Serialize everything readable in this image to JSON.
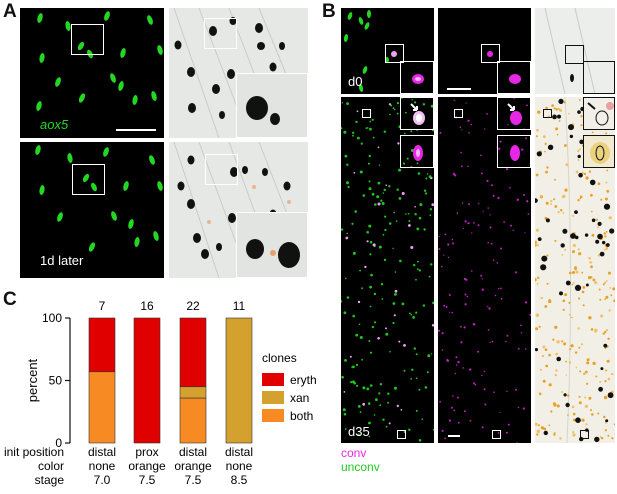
{
  "panels": {
    "a": {
      "letter": "A",
      "top_label": "aox5",
      "bottom_label": "1d later"
    },
    "b": {
      "letter": "B",
      "top_label": "d0",
      "bottom_label": "d35",
      "legend_conv": "conv",
      "legend_unconv": "unconv"
    },
    "c": {
      "letter": "C"
    }
  },
  "colors": {
    "eryth": "#e00000",
    "xan": "#d4a02e",
    "both": "#f78a22",
    "green": "#22d822",
    "magenta": "#e628e6"
  },
  "chart_data": {
    "type": "bar",
    "stacked": true,
    "categories": [
      "distal none 7.0",
      "prox orange 7.5",
      "distal orange 7.5",
      "distal none 8.5"
    ],
    "row_headers": [
      "init position",
      "color",
      "stage"
    ],
    "rows": [
      [
        "distal",
        "prox",
        "distal",
        "distal"
      ],
      [
        "none",
        "orange",
        "orange",
        "none"
      ],
      [
        "7.0",
        "7.5",
        "7.5",
        "8.5"
      ]
    ],
    "counts": [
      "7",
      "16",
      "22",
      "11"
    ],
    "ylabel": "percent",
    "ylim": [
      0,
      100
    ],
    "yticks": [
      "0",
      "50",
      "100"
    ],
    "legend_title": "clones",
    "series": [
      {
        "name": "eryth",
        "values": [
          43,
          100,
          55,
          0
        ]
      },
      {
        "name": "xan",
        "values": [
          0,
          0,
          9,
          100
        ]
      },
      {
        "name": "both",
        "values": [
          57,
          0,
          36,
          0
        ]
      }
    ]
  }
}
